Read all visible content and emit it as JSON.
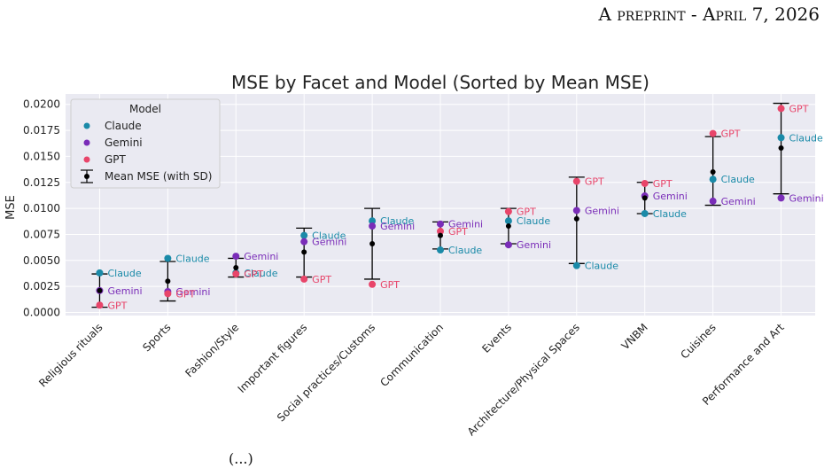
{
  "header": {
    "prefix": "A",
    "small": "preprint",
    "sep": " - ",
    "date_initial": "A",
    "date_rest": "pril",
    "date_tail": " 7, 2026"
  },
  "footer_fragment": "(...)",
  "colors": {
    "Claude": "#1a8aa8",
    "Gemini": "#7a2db8",
    "GPT": "#e8456a",
    "mean": "#000000",
    "plot_bg": "#eaeaf2",
    "grid": "#ffffff"
  },
  "chart_data": {
    "type": "scatter",
    "title": "MSE by Facet and Model (Sorted by Mean MSE)",
    "ylabel": "MSE",
    "xlabel": "",
    "ylim": [
      -0.0003,
      0.021
    ],
    "yticks": [
      "0.0000",
      "0.0025",
      "0.0050",
      "0.0075",
      "0.0100",
      "0.0125",
      "0.0150",
      "0.0175",
      "0.0200"
    ],
    "legend": {
      "title": "Model",
      "position": "top-left",
      "entries": [
        "Claude",
        "Gemini",
        "GPT",
        "Mean MSE (with SD)"
      ]
    },
    "categories": [
      "Religious rituals",
      "Sports",
      "Fashion/Style",
      "Important figures",
      "Social practices/Customs",
      "Communication",
      "Events",
      "Architecture/Physical Spaces",
      "VNBM",
      "Cuisines",
      "Performance and Art"
    ],
    "series": [
      {
        "name": "Claude",
        "values": [
          0.0038,
          0.0052,
          0.0038,
          0.0074,
          0.0088,
          0.006,
          0.0088,
          0.0045,
          0.0095,
          0.0128,
          0.0168
        ]
      },
      {
        "name": "Gemini",
        "values": [
          0.0021,
          0.002,
          0.0054,
          0.0068,
          0.0083,
          0.0085,
          0.0065,
          0.0098,
          0.0112,
          0.0107,
          0.011
        ]
      },
      {
        "name": "GPT",
        "values": [
          0.0007,
          0.0018,
          0.0037,
          0.0032,
          0.0027,
          0.0078,
          0.0097,
          0.0126,
          0.0124,
          0.0172,
          0.0196
        ]
      }
    ],
    "mean": [
      0.0021,
      0.003,
      0.0043,
      0.0058,
      0.0066,
      0.0074,
      0.0083,
      0.009,
      0.011,
      0.0135,
      0.0158
    ],
    "sd_lower": [
      0.0005,
      0.0011,
      0.0034,
      0.0034,
      0.0032,
      0.0061,
      0.0066,
      0.0047,
      0.0095,
      0.0103,
      0.0114
    ],
    "sd_upper": [
      0.0037,
      0.0049,
      0.0052,
      0.0081,
      0.01,
      0.0087,
      0.01,
      0.013,
      0.0125,
      0.0169,
      0.0201
    ]
  }
}
